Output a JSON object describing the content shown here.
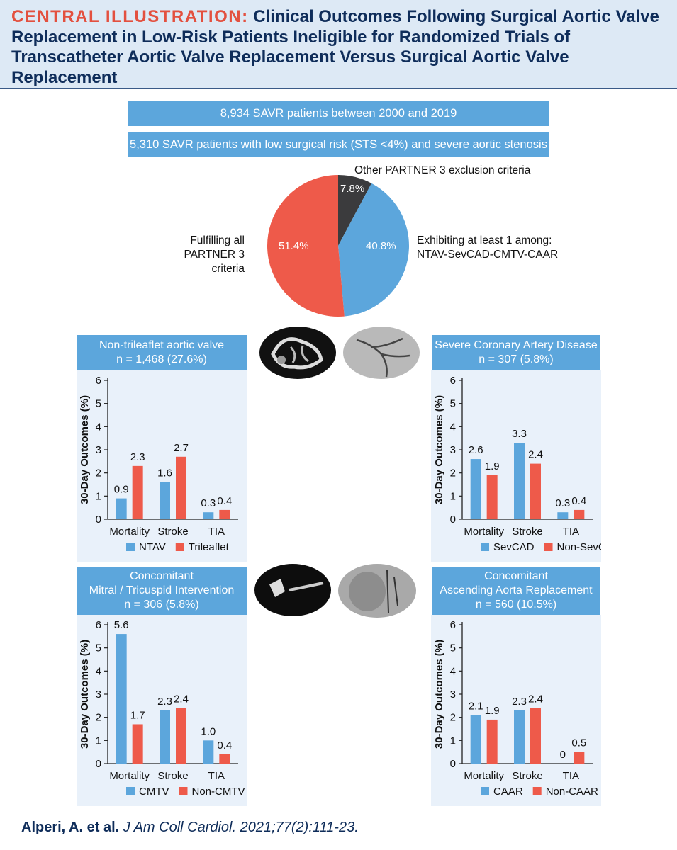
{
  "title": {
    "prefix": "CENTRAL ILLUSTRATION:",
    "text": "Clinical Outcomes Following Surgical Aortic Valve Replacement in Low-Risk Patients Ineligible for Randomized Trials of Transcatheter Aortic Valve Replacement Versus Surgical Aortic Valve Replacement"
  },
  "flow": {
    "step1": "8,934 SAVR patients between 2000 and 2019",
    "step2": "5,310 SAVR patients with low surgical risk (STS <4%) and severe aortic stenosis"
  },
  "pie": {
    "labels": {
      "other": "Other PARTNER 3 exclusion criteria",
      "fulfilling_1": "Fulfilling all",
      "fulfilling_2": "PARTNER 3 criteria",
      "exhibiting_1": "Exhibiting at least 1 among:",
      "exhibiting_2": "NTAV-SevCAD-CMTV-CAAR"
    },
    "percent_labels": {
      "other": "7.8%",
      "fulfilling": "51.4%",
      "exhibiting": "40.8%"
    },
    "colors": {
      "other": "#3b3b3d",
      "fulfilling": "#ee5a4a",
      "exhibiting": "#5ca6dc"
    }
  },
  "headers": {
    "ntav": {
      "line1": "Non-trileaflet aortic valve",
      "line2": "n = 1,468 (27.6%)"
    },
    "sevcad": {
      "line1": "Severe Coronary Artery Disease",
      "line2": "n = 307 (5.8%)"
    },
    "cmtv": {
      "line1": "Concomitant",
      "line2": "Mitral / Tricuspid Intervention",
      "line3": "n = 306 (5.8%)"
    },
    "caar": {
      "line1": "Concomitant",
      "line2": "Ascending Aorta Replacement",
      "line3": "n = 560 (10.5%)"
    }
  },
  "footer": {
    "authors": "Alperi, A. et al.",
    "citation": "J Am Coll Cardiol. 2021;77(2):111-23."
  },
  "colors": {
    "series_a": "#5ca6dc",
    "series_b": "#ee5a4a",
    "plot_bg": "#e9f1fa",
    "header": "#5ca6dc"
  },
  "chart_data": [
    {
      "type": "pie",
      "labels": [
        "Other PARTNER 3 exclusion criteria",
        "Exhibiting at least 1 among: NTAV-SevCAD-CMTV-CAAR",
        "Fulfilling all PARTNER 3 criteria"
      ],
      "values": [
        7.8,
        40.8,
        51.4
      ]
    },
    {
      "type": "bar",
      "id": "ntav",
      "ylabel": "30-Day Outcomes (%)",
      "ylim": [
        0,
        6
      ],
      "yticks": [
        "0",
        "1",
        "2",
        "3",
        "4",
        "5",
        "6"
      ],
      "categories": [
        "Mortality",
        "Stroke",
        "TIA"
      ],
      "series": [
        {
          "name": "NTAV",
          "values": [
            0.9,
            1.6,
            0.3
          ],
          "labels": [
            "0.9",
            "1.6",
            "0.3"
          ]
        },
        {
          "name": "Trileaflet",
          "values": [
            2.3,
            2.7,
            0.4
          ],
          "labels": [
            "2.3",
            "2.7",
            "0.4"
          ]
        }
      ]
    },
    {
      "type": "bar",
      "id": "sevcad",
      "ylabel": "30-Day Outcomes (%)",
      "ylim": [
        0,
        6
      ],
      "yticks": [
        "0",
        "1",
        "2",
        "3",
        "4",
        "5",
        "6"
      ],
      "categories": [
        "Mortality",
        "Stroke",
        "TIA"
      ],
      "series": [
        {
          "name": "SevCAD",
          "values": [
            2.6,
            3.3,
            0.3
          ],
          "labels": [
            "2.6",
            "3.3",
            "0.3"
          ]
        },
        {
          "name": "Non-SevCAD",
          "values": [
            1.9,
            2.4,
            0.4
          ],
          "labels": [
            "1.9",
            "2.4",
            "0.4"
          ]
        }
      ]
    },
    {
      "type": "bar",
      "id": "cmtv",
      "ylabel": "30-Day Outcomes (%)",
      "ylim": [
        0,
        6
      ],
      "yticks": [
        "0",
        "1",
        "2",
        "3",
        "4",
        "5",
        "6"
      ],
      "categories": [
        "Mortality",
        "Stroke",
        "TIA"
      ],
      "series": [
        {
          "name": "CMTV",
          "values": [
            5.6,
            2.3,
            1.0
          ],
          "labels": [
            "5.6",
            "2.3",
            "1.0"
          ]
        },
        {
          "name": "Non-CMTV",
          "values": [
            1.7,
            2.4,
            0.4
          ],
          "labels": [
            "1.7",
            "2.4",
            "0.4"
          ]
        }
      ]
    },
    {
      "type": "bar",
      "id": "caar",
      "ylabel": "30-Day Outcomes (%)",
      "ylim": [
        0,
        6
      ],
      "yticks": [
        "0",
        "1",
        "2",
        "3",
        "4",
        "5",
        "6"
      ],
      "categories": [
        "Mortality",
        "Stroke",
        "TIA"
      ],
      "series": [
        {
          "name": "CAAR",
          "values": [
            2.1,
            2.3,
            0
          ],
          "labels": [
            "2.1",
            "2.3",
            "0"
          ]
        },
        {
          "name": "Non-CAAR",
          "values": [
            1.9,
            2.4,
            0.5
          ],
          "labels": [
            "1.9",
            "2.4",
            "0.5"
          ]
        }
      ]
    }
  ]
}
